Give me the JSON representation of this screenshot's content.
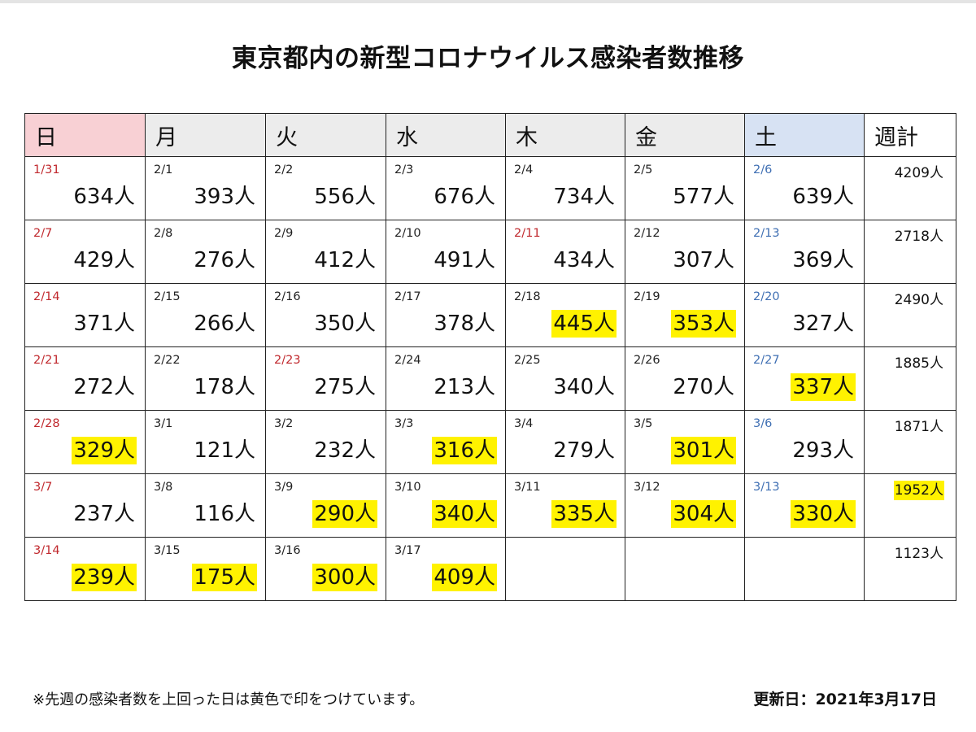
{
  "title": "東京都内の新型コロナウイルス感染者数推移",
  "header": [
    {
      "label": "日",
      "bg": "#f8d0d4"
    },
    {
      "label": "月",
      "bg": "#ececec"
    },
    {
      "label": "火",
      "bg": "#ececec"
    },
    {
      "label": "水",
      "bg": "#ececec"
    },
    {
      "label": "木",
      "bg": "#ececec"
    },
    {
      "label": "金",
      "bg": "#ececec"
    },
    {
      "label": "土",
      "bg": "#d7e2f3"
    },
    {
      "label": "週計",
      "bg": "#ffffff"
    }
  ],
  "weeks": [
    {
      "days": [
        {
          "date": "1/31",
          "count": "634人",
          "date_color": "red",
          "hl": false
        },
        {
          "date": "2/1",
          "count": "393人",
          "date_color": "black",
          "hl": false
        },
        {
          "date": "2/2",
          "count": "556人",
          "date_color": "black",
          "hl": false
        },
        {
          "date": "2/3",
          "count": "676人",
          "date_color": "black",
          "hl": false
        },
        {
          "date": "2/4",
          "count": "734人",
          "date_color": "black",
          "hl": false
        },
        {
          "date": "2/5",
          "count": "577人",
          "date_color": "black",
          "hl": false
        },
        {
          "date": "2/6",
          "count": "639人",
          "date_color": "blue",
          "hl": false
        }
      ],
      "total": "4209人",
      "total_hl": false
    },
    {
      "days": [
        {
          "date": "2/7",
          "count": "429人",
          "date_color": "red",
          "hl": false
        },
        {
          "date": "2/8",
          "count": "276人",
          "date_color": "black",
          "hl": false
        },
        {
          "date": "2/9",
          "count": "412人",
          "date_color": "black",
          "hl": false
        },
        {
          "date": "2/10",
          "count": "491人",
          "date_color": "black",
          "hl": false
        },
        {
          "date": "2/11",
          "count": "434人",
          "date_color": "red",
          "hl": false
        },
        {
          "date": "2/12",
          "count": "307人",
          "date_color": "black",
          "hl": false
        },
        {
          "date": "2/13",
          "count": "369人",
          "date_color": "blue",
          "hl": false
        }
      ],
      "total": "2718人",
      "total_hl": false
    },
    {
      "days": [
        {
          "date": "2/14",
          "count": "371人",
          "date_color": "red",
          "hl": false
        },
        {
          "date": "2/15",
          "count": "266人",
          "date_color": "black",
          "hl": false
        },
        {
          "date": "2/16",
          "count": "350人",
          "date_color": "black",
          "hl": false
        },
        {
          "date": "2/17",
          "count": "378人",
          "date_color": "black",
          "hl": false
        },
        {
          "date": "2/18",
          "count": "445人",
          "date_color": "black",
          "hl": true
        },
        {
          "date": "2/19",
          "count": "353人",
          "date_color": "black",
          "hl": true
        },
        {
          "date": "2/20",
          "count": "327人",
          "date_color": "blue",
          "hl": false
        }
      ],
      "total": "2490人",
      "total_hl": false
    },
    {
      "days": [
        {
          "date": "2/21",
          "count": "272人",
          "date_color": "red",
          "hl": false
        },
        {
          "date": "2/22",
          "count": "178人",
          "date_color": "black",
          "hl": false
        },
        {
          "date": "2/23",
          "count": "275人",
          "date_color": "red",
          "hl": false
        },
        {
          "date": "2/24",
          "count": "213人",
          "date_color": "black",
          "hl": false
        },
        {
          "date": "2/25",
          "count": "340人",
          "date_color": "black",
          "hl": false
        },
        {
          "date": "2/26",
          "count": "270人",
          "date_color": "black",
          "hl": false
        },
        {
          "date": "2/27",
          "count": "337人",
          "date_color": "blue",
          "hl": true
        }
      ],
      "total": "1885人",
      "total_hl": false
    },
    {
      "days": [
        {
          "date": "2/28",
          "count": "329人",
          "date_color": "red",
          "hl": true
        },
        {
          "date": "3/1",
          "count": "121人",
          "date_color": "black",
          "hl": false
        },
        {
          "date": "3/2",
          "count": "232人",
          "date_color": "black",
          "hl": false
        },
        {
          "date": "3/3",
          "count": "316人",
          "date_color": "black",
          "hl": true
        },
        {
          "date": "3/4",
          "count": "279人",
          "date_color": "black",
          "hl": false
        },
        {
          "date": "3/5",
          "count": "301人",
          "date_color": "black",
          "hl": true
        },
        {
          "date": "3/6",
          "count": "293人",
          "date_color": "blue",
          "hl": false
        }
      ],
      "total": "1871人",
      "total_hl": false
    },
    {
      "days": [
        {
          "date": "3/7",
          "count": "237人",
          "date_color": "red",
          "hl": false
        },
        {
          "date": "3/8",
          "count": "116人",
          "date_color": "black",
          "hl": false
        },
        {
          "date": "3/9",
          "count": "290人",
          "date_color": "black",
          "hl": true
        },
        {
          "date": "3/10",
          "count": "340人",
          "date_color": "black",
          "hl": true
        },
        {
          "date": "3/11",
          "count": "335人",
          "date_color": "black",
          "hl": true
        },
        {
          "date": "3/12",
          "count": "304人",
          "date_color": "black",
          "hl": true
        },
        {
          "date": "3/13",
          "count": "330人",
          "date_color": "blue",
          "hl": true
        }
      ],
      "total": "1952人",
      "total_hl": true
    },
    {
      "days": [
        {
          "date": "3/14",
          "count": "239人",
          "date_color": "red",
          "hl": true
        },
        {
          "date": "3/15",
          "count": "175人",
          "date_color": "black",
          "hl": true
        },
        {
          "date": "3/16",
          "count": "300人",
          "date_color": "black",
          "hl": true
        },
        {
          "date": "3/17",
          "count": "409人",
          "date_color": "black",
          "hl": true
        },
        null,
        null,
        null
      ],
      "total": "1123人",
      "total_hl": false
    }
  ],
  "footnote": "※先週の感染者数を上回った日は黄色で印をつけています。",
  "updated": "更新日：2021年3月17日",
  "colors": {
    "highlight": "#fff200",
    "date_red": "#c0282d",
    "date_blue": "#3f6fb3",
    "date_black": "#222222"
  }
}
